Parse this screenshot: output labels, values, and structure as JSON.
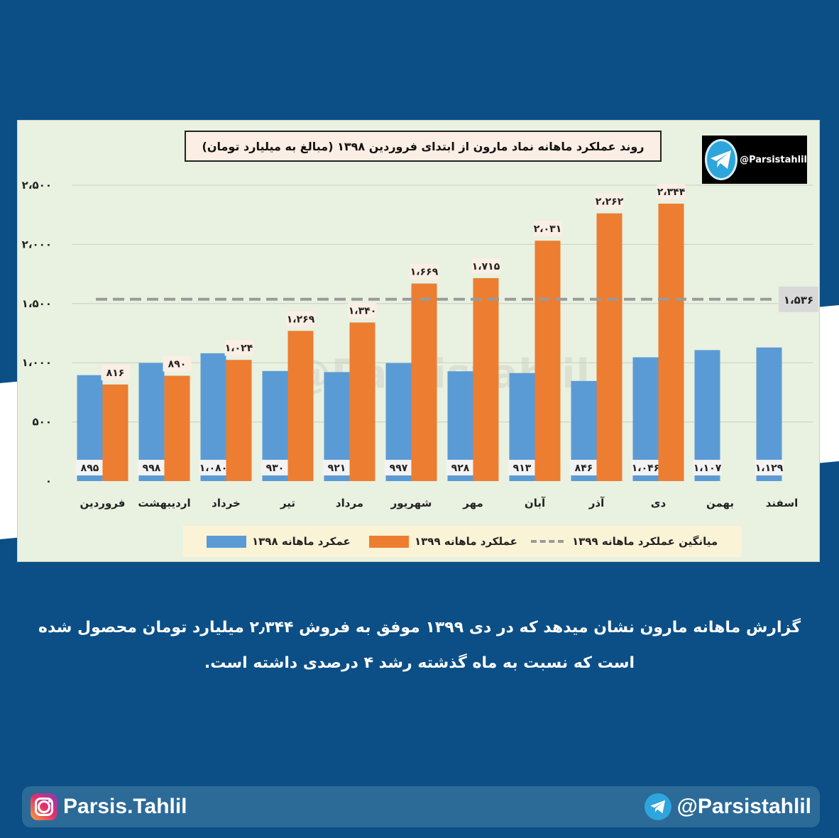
{
  "chart_data": {
    "type": "bar",
    "title": "روند عملکرد ماهانه نماد مارون از ابتدای فروردین ۱۳۹۸ (مبالغ به میلیارد تومان)",
    "categories": [
      "فروردین",
      "اردیبهشت",
      "خرداد",
      "تیر",
      "مرداد",
      "شهریور",
      "مهر",
      "آبان",
      "آذر",
      "دی",
      "بهمن",
      "اسفند"
    ],
    "series": [
      {
        "name": "عمکرد ماهانه ۱۳۹۸",
        "color": "#5b9bd5",
        "values": [
          895,
          998,
          1080,
          930,
          921,
          997,
          928,
          913,
          846,
          1046,
          1107,
          1129
        ],
        "labels": [
          "۸۹۵",
          "۹۹۸",
          "۱،۰۸۰",
          "۹۳۰",
          "۹۲۱",
          "۹۹۷",
          "۹۲۸",
          "۹۱۳",
          "۸۴۶",
          "۱،۰۴۶",
          "۱،۱۰۷",
          "۱،۱۲۹"
        ]
      },
      {
        "name": "عملکرد ماهانه ۱۳۹۹",
        "color": "#ed7d31",
        "values": [
          816,
          890,
          1024,
          1269,
          1340,
          1669,
          1715,
          2031,
          2262,
          2344,
          null,
          null
        ],
        "labels": [
          "۸۱۶",
          "۸۹۰",
          "۱،۰۲۴",
          "۱،۲۶۹",
          "۱،۳۴۰",
          "۱،۶۶۹",
          "۱،۷۱۵",
          "۲،۰۳۱",
          "۲،۲۶۲",
          "۲،۳۴۴",
          "",
          ""
        ]
      }
    ],
    "average": {
      "name": "میانگین عملکرد ماهانه ۱۳۹۹",
      "value": 1536,
      "label": "۱،۵۳۶",
      "color": "#9a9a9a"
    },
    "ylim": [
      0,
      2500
    ],
    "yticks": [
      0,
      500,
      1000,
      1500,
      2000,
      2500
    ],
    "ytick_labels": [
      "۰",
      "۵۰۰",
      "۱،۰۰۰",
      "۱،۵۰۰",
      "۲،۰۰۰",
      "۲،۵۰۰"
    ],
    "grid": true,
    "legend": "bottom"
  },
  "header": {
    "telegram_handle": "@Parsistahlil"
  },
  "watermark": "@Parsistahlil",
  "caption": "گزارش ماهانه مارون نشان میدهد که در دی ۱۳۹۹ موفق به فروش ۲٫۳۴۴ میلیارد تومان محصول شده است که نسبت به ماه گذشته رشد ۴ درصدی داشته است.",
  "footer": {
    "instagram": "Parsis.Tahlil",
    "telegram": "@Parsistahlil"
  }
}
